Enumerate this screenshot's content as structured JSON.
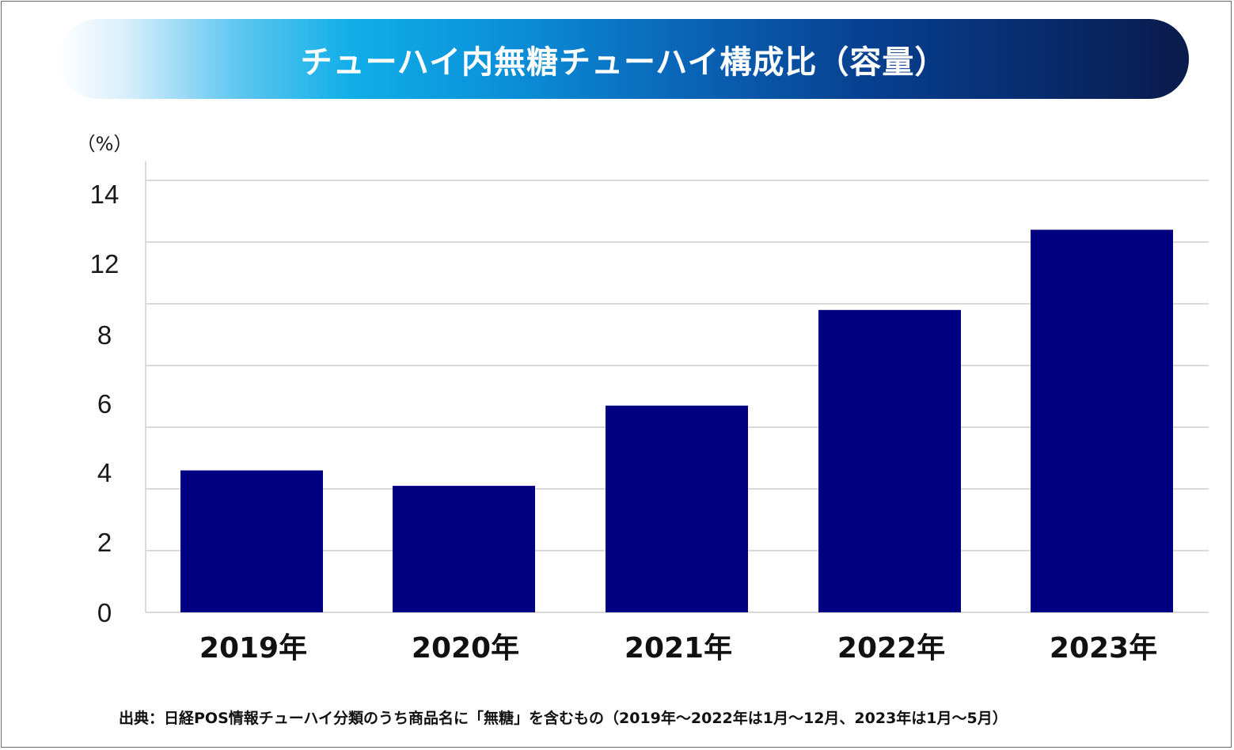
{
  "chart_data": {
    "type": "bar",
    "title": "チューハイ内無糖チューハイ構成比（容量）",
    "yunit": "（%）",
    "categories": [
      "2019年",
      "2020年",
      "2021年",
      "2022年",
      "2023年"
    ],
    "values": [
      4.6,
      4.1,
      6.7,
      9.8,
      12.4
    ],
    "ytick_labels": [
      "0",
      "2",
      "4",
      "6",
      "8",
      "12",
      "14"
    ],
    "ylim": [
      0,
      14
    ],
    "grid": true,
    "bar_color": "#000080",
    "grid_color": "#d9d9d9"
  },
  "source_note": "出典：日経POS情報チューハイ分類のうち商品名に「無糖」を含むもの（2019年～2022年は1月～12月、2023年は1月～5月）"
}
